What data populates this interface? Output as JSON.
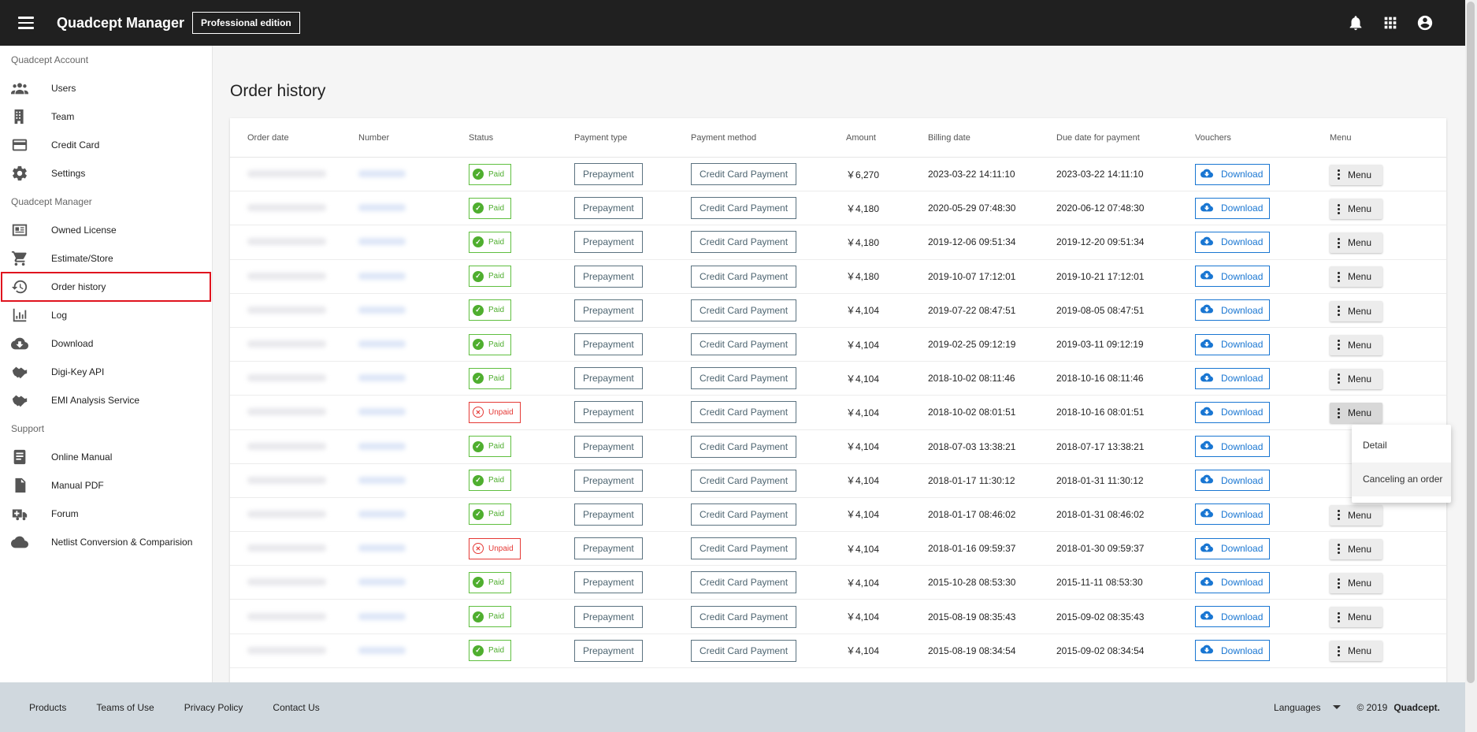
{
  "header": {
    "brand": "Quadcept Manager",
    "edition": "Professional edition",
    "icons": [
      "bell-icon",
      "apps-grid-icon",
      "account-circle-icon"
    ]
  },
  "sidebar": {
    "sections": [
      {
        "title": "Quadcept Account",
        "items": [
          {
            "label": "Users",
            "icon": "users-icon"
          },
          {
            "label": "Team",
            "icon": "building-icon"
          },
          {
            "label": "Credit Card",
            "icon": "credit-card-icon"
          },
          {
            "label": "Settings",
            "icon": "gear-icon"
          }
        ]
      },
      {
        "title": "Quadcept Manager",
        "items": [
          {
            "label": "Owned License",
            "icon": "license-card-icon"
          },
          {
            "label": "Estimate/Store",
            "icon": "cart-icon"
          },
          {
            "label": "Order history",
            "icon": "history-icon",
            "active": true
          },
          {
            "label": "Log",
            "icon": "bar-chart-icon"
          },
          {
            "label": "Download",
            "icon": "cloud-download-icon"
          },
          {
            "label": "Digi-Key API",
            "icon": "handshake-icon"
          },
          {
            "label": "EMI Analysis Service",
            "icon": "handshake-icon"
          }
        ]
      },
      {
        "title": "Support",
        "items": [
          {
            "label": "Online Manual",
            "icon": "book-icon"
          },
          {
            "label": "Manual PDF",
            "icon": "pdf-file-icon"
          },
          {
            "label": "Forum",
            "icon": "medical-forum-icon"
          },
          {
            "label": "Netlist Conversion & Comparision",
            "icon": "cloud-netlist-icon"
          }
        ]
      }
    ]
  },
  "main": {
    "title": "Order history",
    "columns": [
      "Order date",
      "Number",
      "Status",
      "Payment type",
      "Payment method",
      "Amount",
      "Billing date",
      "Due date for payment",
      "Vouchers",
      "Menu"
    ],
    "rows": [
      {
        "status": "Paid",
        "type": "Prepayment",
        "method": "Credit Card Payment",
        "amount": "￥6,270",
        "billing": "2023-03-22 14:11:10",
        "due": "2023-03-22 14:11:10"
      },
      {
        "status": "Paid",
        "type": "Prepayment",
        "method": "Credit Card Payment",
        "amount": "￥4,180",
        "billing": "2020-05-29 07:48:30",
        "due": "2020-06-12 07:48:30"
      },
      {
        "status": "Paid",
        "type": "Prepayment",
        "method": "Credit Card Payment",
        "amount": "￥4,180",
        "billing": "2019-12-06 09:51:34",
        "due": "2019-12-20 09:51:34"
      },
      {
        "status": "Paid",
        "type": "Prepayment",
        "method": "Credit Card Payment",
        "amount": "￥4,180",
        "billing": "2019-10-07 17:12:01",
        "due": "2019-10-21 17:12:01"
      },
      {
        "status": "Paid",
        "type": "Prepayment",
        "method": "Credit Card Payment",
        "amount": "￥4,104",
        "billing": "2019-07-22 08:47:51",
        "due": "2019-08-05 08:47:51"
      },
      {
        "status": "Paid",
        "type": "Prepayment",
        "method": "Credit Card Payment",
        "amount": "￥4,104",
        "billing": "2019-02-25 09:12:19",
        "due": "2019-03-11 09:12:19"
      },
      {
        "status": "Paid",
        "type": "Prepayment",
        "method": "Credit Card Payment",
        "amount": "￥4,104",
        "billing": "2018-10-02 08:11:46",
        "due": "2018-10-16 08:11:46"
      },
      {
        "status": "Unpaid",
        "type": "Prepayment",
        "method": "Credit Card Payment",
        "amount": "￥4,104",
        "billing": "2018-10-02 08:01:51",
        "due": "2018-10-16 08:01:51",
        "menu_open": true
      },
      {
        "status": "Paid",
        "type": "Prepayment",
        "method": "Credit Card Payment",
        "amount": "￥4,104",
        "billing": "2018-07-03 13:38:21",
        "due": "2018-07-17 13:38:21",
        "menu_hidden": true
      },
      {
        "status": "Paid",
        "type": "Prepayment",
        "method": "Credit Card Payment",
        "amount": "￥4,104",
        "billing": "2018-01-17 11:30:12",
        "due": "2018-01-31 11:30:12",
        "menu_hidden": true
      },
      {
        "status": "Paid",
        "type": "Prepayment",
        "method": "Credit Card Payment",
        "amount": "￥4,104",
        "billing": "2018-01-17 08:46:02",
        "due": "2018-01-31 08:46:02"
      },
      {
        "status": "Unpaid",
        "type": "Prepayment",
        "method": "Credit Card Payment",
        "amount": "￥4,104",
        "billing": "2018-01-16 09:59:37",
        "due": "2018-01-30 09:59:37"
      },
      {
        "status": "Paid",
        "type": "Prepayment",
        "method": "Credit Card Payment",
        "amount": "￥4,104",
        "billing": "2015-10-28 08:53:30",
        "due": "2015-11-11 08:53:30"
      },
      {
        "status": "Paid",
        "type": "Prepayment",
        "method": "Credit Card Payment",
        "amount": "￥4,104",
        "billing": "2015-08-19 08:35:43",
        "due": "2015-09-02 08:35:43"
      },
      {
        "status": "Paid",
        "type": "Prepayment",
        "method": "Credit Card Payment",
        "amount": "￥4,104",
        "billing": "2015-08-19 08:34:54",
        "due": "2015-09-02 08:34:54"
      }
    ],
    "download_label": "Download",
    "menu_label": "Menu"
  },
  "dropdown": {
    "items": [
      "Detail",
      "Canceling an order"
    ]
  },
  "footer": {
    "links": [
      "Products",
      "Teams of Use",
      "Privacy Policy",
      "Contact Us"
    ],
    "languages": "Languages",
    "copyright": "© 2019",
    "company": "Quadcept."
  },
  "colors": {
    "topbar": "#202020",
    "paid": "#4fae2f",
    "unpaid": "#e53935",
    "download": "#1976d2",
    "active_outline": "#e0131e",
    "footer": "#d0d8de"
  }
}
